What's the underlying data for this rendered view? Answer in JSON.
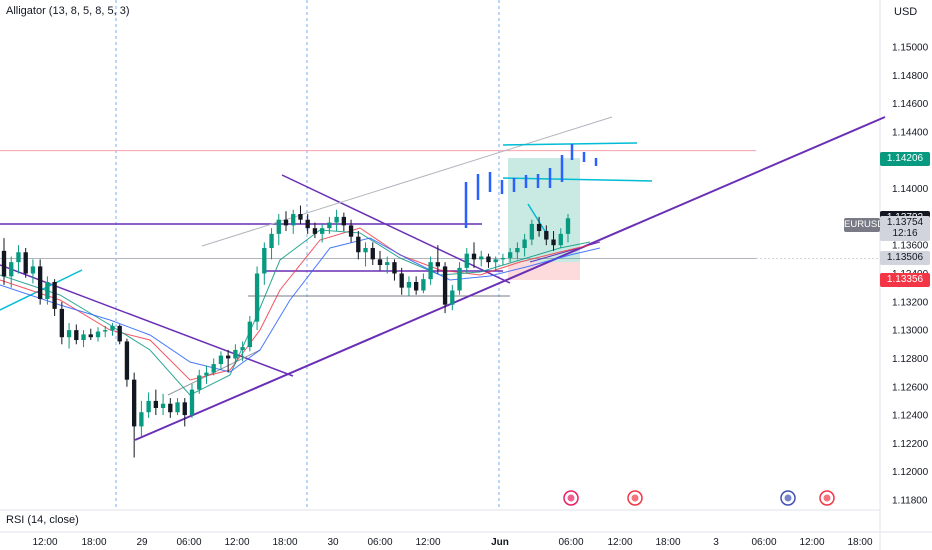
{
  "header": {
    "indicator": "Alligator (13, 8, 5, 8, 5, 3)",
    "currency": "USD",
    "rsi_label": "RSI (14, close)"
  },
  "price_tags": [
    {
      "name": "price-tag-green",
      "label": "1.14206",
      "bg": "#089981",
      "fg": "#ffffff",
      "price": 1.14206
    },
    {
      "name": "price-tag-current",
      "label": "1.13792",
      "bg": "#131722",
      "fg": "#ffffff",
      "price": 1.13792
    },
    {
      "name": "price-tag-last",
      "label": "1.13754",
      "bg": "#d1d4dc",
      "fg": "#131722",
      "price": 1.13754
    },
    {
      "name": "price-tag-countdown",
      "label": "12:16",
      "bg": "#d1d4dc",
      "fg": "#131722",
      "price": 1.1368
    },
    {
      "name": "price-tag-grey",
      "label": "1.13506",
      "bg": "#d1d4dc",
      "fg": "#131722",
      "price": 1.13506
    },
    {
      "name": "price-tag-red",
      "label": "1.13356",
      "bg": "#f23645",
      "fg": "#ffffff",
      "price": 1.13356
    }
  ],
  "symbol": "EURUSD",
  "colors": {
    "bull": "#089981",
    "bear": "#131722",
    "purple": "#6a2fb5",
    "cyan": "#00bcd4",
    "blue": "#2962ff",
    "red_line": "#f7a1aa"
  },
  "chart_data": {
    "type": "candlestick",
    "symbol": "EURUSD",
    "y_ticks": [
      "1.15000",
      "1.14800",
      "1.14600",
      "1.14400",
      "1.14200",
      "1.14000",
      "1.13800",
      "1.13600",
      "1.13400",
      "1.13200",
      "1.13000",
      "1.12800",
      "1.12600",
      "1.12400",
      "1.12200",
      "1.12000",
      "1.11800"
    ],
    "y_values": [
      1.15,
      1.148,
      1.146,
      1.144,
      1.142,
      1.14,
      1.138,
      1.136,
      1.134,
      1.132,
      1.13,
      1.128,
      1.126,
      1.124,
      1.122,
      1.12,
      1.118
    ],
    "ylim": [
      1.1172,
      1.1521
    ],
    "x_ticks": [
      "12:00",
      "18:00",
      "29",
      "06:00",
      "12:00",
      "18:00",
      "30",
      "06:00",
      "12:00",
      "Jun",
      "06:00",
      "12:00",
      "18:00",
      "3",
      "06:00",
      "12:00",
      "18:00"
    ],
    "x_ticks_bold": [
      false,
      false,
      false,
      false,
      false,
      false,
      false,
      false,
      false,
      true,
      false,
      false,
      false,
      false,
      false,
      false,
      false
    ],
    "horizontal_lines": [
      {
        "price": 1.14268,
        "color": "#f7a1aa"
      },
      {
        "price": 1.13506,
        "color": "#b2b5be"
      }
    ],
    "candles": [
      [
        1.1356,
        1.1365,
        1.1332,
        1.1338
      ],
      [
        1.1338,
        1.1352,
        1.133,
        1.1348
      ],
      [
        1.1348,
        1.136,
        1.134,
        1.1355
      ],
      [
        1.1355,
        1.1358,
        1.1337,
        1.134
      ],
      [
        1.134,
        1.135,
        1.1333,
        1.1345
      ],
      [
        1.1345,
        1.135,
        1.1318,
        1.1322
      ],
      [
        1.1322,
        1.1338,
        1.1318,
        1.1334
      ],
      [
        1.1334,
        1.1336,
        1.131,
        1.1315
      ],
      [
        1.1315,
        1.132,
        1.129,
        1.1295
      ],
      [
        1.1295,
        1.1305,
        1.1287,
        1.13
      ],
      [
        1.13,
        1.1304,
        1.129,
        1.1293
      ],
      [
        1.1293,
        1.13,
        1.1288,
        1.1297
      ],
      [
        1.1297,
        1.1301,
        1.1293,
        1.1295
      ],
      [
        1.1295,
        1.1302,
        1.1292,
        1.1299
      ],
      [
        1.1299,
        1.1303,
        1.1295,
        1.13
      ],
      [
        1.13,
        1.1305,
        1.1296,
        1.1303
      ],
      [
        1.1303,
        1.1304,
        1.129,
        1.1292
      ],
      [
        1.1292,
        1.1294,
        1.126,
        1.1265
      ],
      [
        1.1265,
        1.127,
        1.121,
        1.1232
      ],
      [
        1.1232,
        1.125,
        1.1225,
        1.1242
      ],
      [
        1.1242,
        1.1256,
        1.1238,
        1.125
      ],
      [
        1.125,
        1.1258,
        1.124,
        1.1245
      ],
      [
        1.1245,
        1.1255,
        1.124,
        1.1248
      ],
      [
        1.1248,
        1.1252,
        1.1238,
        1.1242
      ],
      [
        1.1242,
        1.1252,
        1.124,
        1.1249
      ],
      [
        1.1249,
        1.1252,
        1.1232,
        1.124
      ],
      [
        1.124,
        1.1262,
        1.1238,
        1.1258
      ],
      [
        1.1258,
        1.1272,
        1.1255,
        1.1268
      ],
      [
        1.1268,
        1.1275,
        1.1262,
        1.127
      ],
      [
        1.127,
        1.128,
        1.1268,
        1.1276
      ],
      [
        1.1276,
        1.1285,
        1.1272,
        1.1282
      ],
      [
        1.1282,
        1.1286,
        1.127,
        1.128
      ],
      [
        1.128,
        1.129,
        1.1276,
        1.1286
      ],
      [
        1.1286,
        1.1292,
        1.1278,
        1.1288
      ],
      [
        1.1288,
        1.131,
        1.1285,
        1.1306
      ],
      [
        1.1306,
        1.1345,
        1.13,
        1.134
      ],
      [
        1.134,
        1.1362,
        1.1332,
        1.1358
      ],
      [
        1.1358,
        1.1372,
        1.135,
        1.1368
      ],
      [
        1.1368,
        1.1382,
        1.136,
        1.1378
      ],
      [
        1.1378,
        1.1384,
        1.137,
        1.1374
      ],
      [
        1.1374,
        1.1385,
        1.1368,
        1.1382
      ],
      [
        1.1382,
        1.1388,
        1.1375,
        1.1378
      ],
      [
        1.1378,
        1.1382,
        1.1368,
        1.1372
      ],
      [
        1.1372,
        1.1376,
        1.1365,
        1.1368
      ],
      [
        1.1368,
        1.1375,
        1.1362,
        1.1372
      ],
      [
        1.1372,
        1.138,
        1.1368,
        1.1376
      ],
      [
        1.1376,
        1.1385,
        1.137,
        1.138
      ],
      [
        1.138,
        1.1383,
        1.137,
        1.1374
      ],
      [
        1.1374,
        1.1378,
        1.1362,
        1.1366
      ],
      [
        1.1366,
        1.137,
        1.135,
        1.1355
      ],
      [
        1.1355,
        1.1362,
        1.1345,
        1.1358
      ],
      [
        1.1358,
        1.1362,
        1.1346,
        1.135
      ],
      [
        1.135,
        1.1356,
        1.1342,
        1.1346
      ],
      [
        1.1346,
        1.1352,
        1.134,
        1.1348
      ],
      [
        1.1348,
        1.135,
        1.1335,
        1.134
      ],
      [
        1.134,
        1.1344,
        1.1325,
        1.133
      ],
      [
        1.133,
        1.1338,
        1.1324,
        1.1334
      ],
      [
        1.1334,
        1.1338,
        1.1325,
        1.1328
      ],
      [
        1.1328,
        1.134,
        1.1326,
        1.1336
      ],
      [
        1.1336,
        1.1352,
        1.1332,
        1.1348
      ],
      [
        1.1348,
        1.136,
        1.134,
        1.1345
      ],
      [
        1.1345,
        1.1348,
        1.1312,
        1.1318
      ],
      [
        1.1318,
        1.1332,
        1.1314,
        1.1328
      ],
      [
        1.1328,
        1.1348,
        1.1325,
        1.1344
      ],
      [
        1.1344,
        1.1358,
        1.134,
        1.1354
      ],
      [
        1.1354,
        1.1362,
        1.1344,
        1.135
      ],
      [
        1.135,
        1.1356,
        1.1345,
        1.1352
      ],
      [
        1.1352,
        1.1354,
        1.1344,
        1.1348
      ],
      [
        1.1348,
        1.1352,
        1.1342,
        1.135
      ],
      [
        1.135,
        1.1354,
        1.1346,
        1.1351
      ],
      [
        1.1351,
        1.1358,
        1.1348,
        1.1355
      ],
      [
        1.1355,
        1.1362,
        1.135,
        1.1358
      ],
      [
        1.1358,
        1.1368,
        1.1352,
        1.1364
      ],
      [
        1.1364,
        1.1378,
        1.136,
        1.1375
      ],
      [
        1.1375,
        1.138,
        1.1366,
        1.137
      ],
      [
        1.137,
        1.1374,
        1.136,
        1.1364
      ],
      [
        1.1364,
        1.137,
        1.1356,
        1.136
      ],
      [
        1.136,
        1.1372,
        1.1358,
        1.1368
      ],
      [
        1.1368,
        1.1382,
        1.1362,
        1.1379
      ]
    ]
  }
}
